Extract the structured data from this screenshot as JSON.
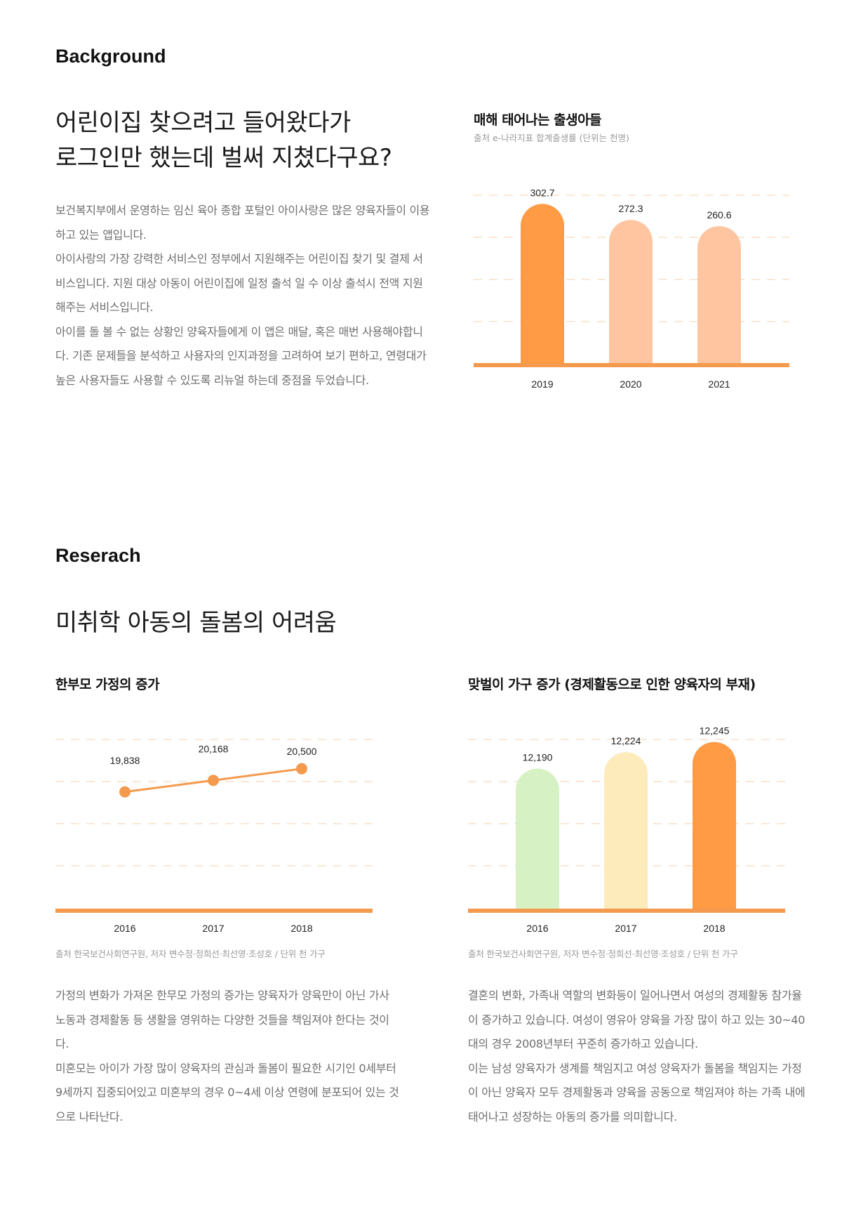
{
  "background": {
    "section_label": "Background",
    "headline": [
      "어린이집 찾으려고 들어왔다가",
      "로그인만 했는데 벌써 지쳤다구요?"
    ],
    "paragraphs": [
      "보건복지부에서 운영하는 임신 육아 종합 포털인 아이사랑은 많은 양육자들이 이용하고 있는 앱입니다.",
      "아이사랑의 가장 강력한 서비스인 정부에서 지원해주는 어린이집 찾기 및 결제 서비스입니다. 지원 대상 아동이 어린이집에 일정 출석 일 수 이상 출석시 전액 지원해주는 서비스입니다.",
      "아이를 돌 볼 수 없는 상황인 양육자들에게 이 앱은 매달, 혹은 매번 사용해야합니다. 기존 문제들을 분석하고 사용자의 인지과정을 고려하여 보기 편하고, 연령대가 높은 사용자들도 사용할 수 있도록 리뉴얼 하는데 중점을 두었습니다."
    ],
    "chart_title": "매해 태어나는 출생아들",
    "chart_subtitle": "출처 e-나라지표 합계출생률 (단위는 천명)"
  },
  "research": {
    "section_label": "Reserach",
    "headline": "미취학 아동의 돌봄의 어려움",
    "left": {
      "chart_title": "한부모 가정의 증가",
      "source": "출처 한국보건사회연구원,  저자 변수정·정희선·최선영·조성호 / 단위 천 가구",
      "paragraphs": [
        "가정의 변화가 가져온 한무모 가정의 증가는 양육자가 양육만이 아닌 가사노동과 경제활동 등 생활을 영위하는 다양한 것들을 책임져야 한다는 것이다.",
        "미혼모는 아이가 가장 많이 양육자의 관심과 돌봄이 필요한 시기인 0세부터 9세까지 집중되어있고 미혼부의 경우 0~4세 이상 연령에 분포되어 있는 것으로 나타난다."
      ]
    },
    "right": {
      "chart_title": "맞벌이 가구 증가 (경제활동으로 인한 양육자의 부재)",
      "source": "출처 한국보건사회연구원,  저자 변수정·정희선·최선영·조성호 / 단위 천 가구",
      "paragraphs": [
        "결혼의 변화, 가족내 역할의 변화등이 일어나면서 여성의 경제활동 참가율이 증가하고 있습니다. 여성이 영유아 양육을 가장 많이 하고 있는 30~40대의 경우 2008년부터 꾸준히 증가하고 있습니다.",
        "이는 남성 양육자가 생계를 책임지고 여성 양육자가 돌봄을 책임지는 가정이 아닌 양육자 모두 경제활동과 양육을 공동으로 책임져야 하는 가족 내에 태어나고 성장하는 아동의 증가를 의미합니다."
      ]
    }
  },
  "chart_data": [
    {
      "type": "bar",
      "title": "매해 태어나는 출생아들",
      "subtitle": "출처 e-나라지표 합계출생률 (단위는 천명)",
      "categories": [
        "2019",
        "2020",
        "2021"
      ],
      "values": [
        302.7,
        272.3,
        260.6
      ],
      "value_labels": [
        "302.7",
        "272.3",
        "260.6"
      ],
      "bar_colors": [
        "#ff9a45",
        "#ffc5a0",
        "#ffc5a0"
      ],
      "ylim": [
        0,
        330
      ],
      "grid": true
    },
    {
      "type": "line",
      "title": "한부모 가정의 증가",
      "categories": [
        "2016",
        "2017",
        "2018"
      ],
      "values": [
        19838,
        20168,
        20500
      ],
      "value_labels": [
        "19,838",
        "20,168",
        "20,500"
      ],
      "line_color": "#f49a4e",
      "ylim": [
        16500,
        21500
      ],
      "grid": true
    },
    {
      "type": "bar",
      "title": "맞벌이 가구 증가 (경제활동으로 인한 양육자의 부재)",
      "categories": [
        "2016",
        "2017",
        "2018"
      ],
      "values": [
        12190,
        12224,
        12245
      ],
      "value_labels": [
        "12,190",
        "12,224",
        "12,245"
      ],
      "bar_colors": [
        "#d6f2c5",
        "#fdebbb",
        "#ff9a45"
      ],
      "ylim": [
        11900,
        12262
      ],
      "grid": true
    }
  ]
}
